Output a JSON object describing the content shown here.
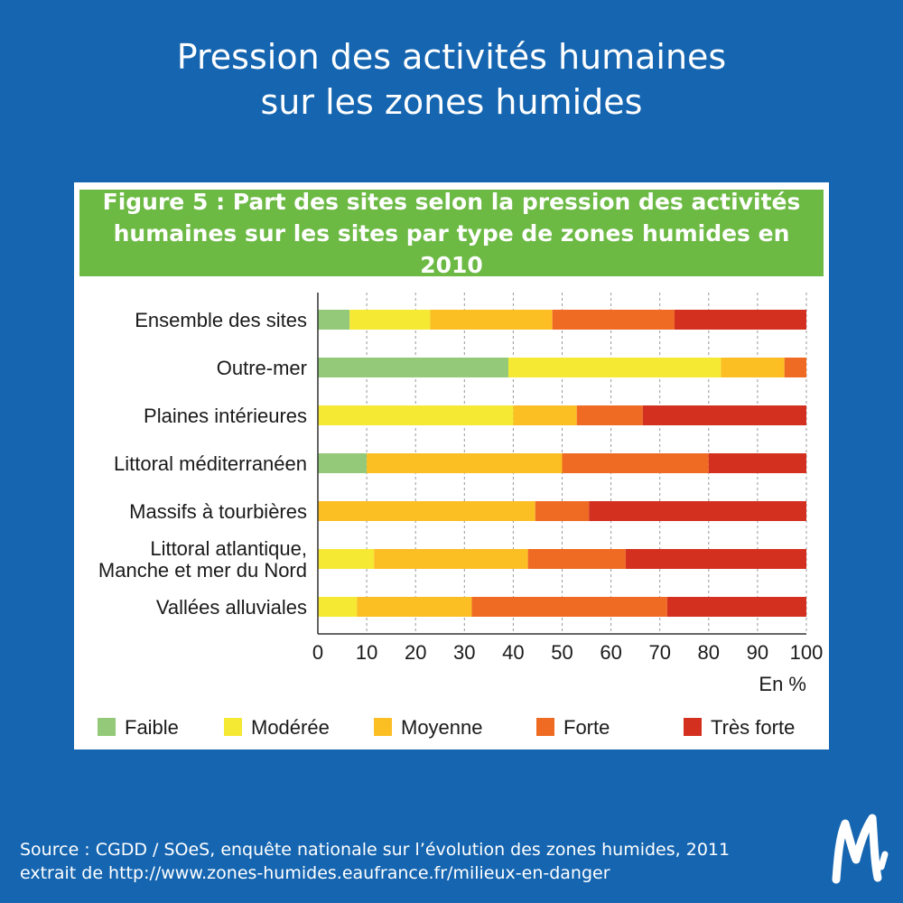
{
  "page": {
    "title_line1": "Pression des activités humaines",
    "title_line2": "sur les zones humides"
  },
  "figure": {
    "title_line1": "Figure 5 : Part des sites selon la pression des activités",
    "title_line2": "humaines sur les sites par type de zones humides en 2010"
  },
  "colors": {
    "background": "#1565b0",
    "header": "#6cb944"
  },
  "chart_data": {
    "type": "bar",
    "orientation": "horizontal",
    "stacked": true,
    "categories": [
      [
        "Ensemble des sites"
      ],
      [
        "Outre-mer"
      ],
      [
        "Plaines intérieures"
      ],
      [
        "Littoral méditerranéen"
      ],
      [
        "Massifs à tourbières"
      ],
      [
        "Littoral atlantique,",
        "Manche et mer du Nord"
      ],
      [
        "Vallées alluviales"
      ]
    ],
    "series": [
      {
        "name": "Faible",
        "color": "#93c978",
        "values": [
          6.5,
          39,
          0,
          10,
          0,
          0,
          0
        ]
      },
      {
        "name": "Modérée",
        "color": "#f5e934",
        "values": [
          16.5,
          43.5,
          40,
          0,
          0,
          11.5,
          8
        ]
      },
      {
        "name": "Moyenne",
        "color": "#fbbf24",
        "values": [
          25,
          13,
          13,
          40,
          44.5,
          31.5,
          23.5
        ]
      },
      {
        "name": "Forte",
        "color": "#ef6b24",
        "values": [
          25,
          4.5,
          13.5,
          30,
          11,
          20,
          40
        ]
      },
      {
        "name": "Très forte",
        "color": "#d3301f",
        "values": [
          27,
          0,
          33.5,
          20,
          44.5,
          37,
          28.5
        ]
      }
    ],
    "xlim": [
      0,
      100
    ],
    "xticks": [
      0,
      10,
      20,
      30,
      40,
      50,
      60,
      70,
      80,
      90,
      100
    ],
    "xlabel": "En %",
    "grid": true,
    "legend_position": "bottom"
  },
  "source": {
    "line1": "Source : CGDD / SOeS, enquête nationale sur l’évolution des zones humides, 2011",
    "line2": "extrait de http://www.zones-humides.eaufrance.fr/milieux-en-danger"
  }
}
